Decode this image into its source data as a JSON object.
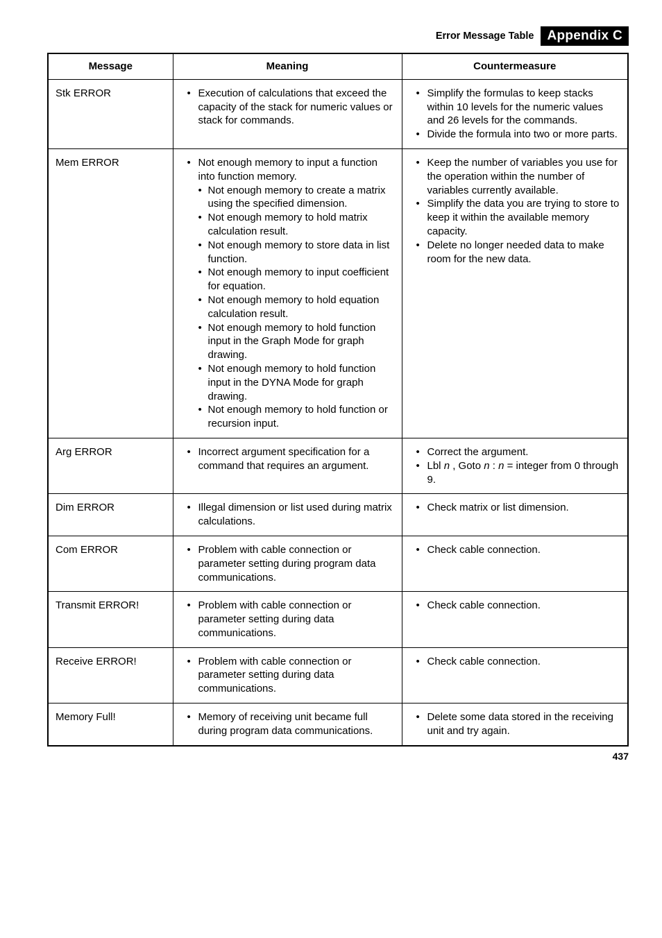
{
  "header": {
    "title": "Error Message Table",
    "badge": "Appendix C"
  },
  "table": {
    "columns": [
      "Message",
      "Meaning",
      "Countermeasure"
    ]
  },
  "rows": {
    "r0": {
      "message": "Stk ERROR",
      "meaning": [
        "Execution of calculations that exceed the capacity of the stack for numeric values or stack for commands."
      ],
      "counter": [
        "Simplify the formulas to keep stacks within 10 levels for the numeric values and 26 levels for the commands.",
        "Divide the formula into two or more parts."
      ]
    },
    "r1": {
      "message": "Mem ERROR",
      "meaning_top": "Not enough memory to input a function into function memory.",
      "meaning_sub": [
        "Not enough memory to create a matrix using the specified dimension.",
        "Not enough memory to hold matrix calculation result.",
        "Not enough memory to store data in list function.",
        "Not enough memory to input coefficient for equation.",
        "Not enough memory to hold equation calculation result.",
        "Not enough memory to hold function input in the Graph Mode for graph drawing.",
        "Not enough memory to hold function input in the DYNA Mode for graph drawing.",
        "Not enough memory to hold function or recursion input."
      ],
      "counter": [
        "Keep the number of variables you use for the operation within the number of variables currently available.",
        "Simplify the data you are trying to store to keep it within the available memory capacity.",
        "Delete no longer needed data to make room for the new data."
      ]
    },
    "r2": {
      "message": "Arg ERROR",
      "meaning": [
        "Incorrect argument specification for a command that requires an argument."
      ],
      "counter_a": "Correct the argument.",
      "counter_b_pre": "Lbl ",
      "counter_b_mid": " , Goto ",
      "counter_b_post": " = integer from 0 through 9."
    },
    "r3": {
      "message": "Dim ERROR",
      "meaning": [
        "Illegal dimension or list used during matrix calculations."
      ],
      "counter": [
        "Check matrix or list dimension."
      ]
    },
    "r4": {
      "message": "Com ERROR",
      "meaning": [
        "Problem with cable connection or parameter setting during program data communications."
      ],
      "counter": [
        "Check cable connection."
      ]
    },
    "r5": {
      "message": "Transmit ERROR!",
      "meaning": [
        "Problem with cable connection or parameter setting during data communications."
      ],
      "counter": [
        "Check cable connection."
      ]
    },
    "r6": {
      "message": "Receive ERROR!",
      "meaning": [
        "Problem with cable connection or parameter setting during data communications."
      ],
      "counter": [
        "Check cable connection."
      ]
    },
    "r7": {
      "message": "Memory Full!",
      "meaning": [
        "Memory of receiving unit became full during program data communications."
      ],
      "counter": [
        "Delete some data stored in the receiving unit and try again."
      ]
    }
  },
  "page_number": "437",
  "style": {
    "page_bg": "#ffffff",
    "text_color": "#000000",
    "border_color": "#000000",
    "badge_bg": "#000000",
    "badge_fg": "#ffffff",
    "body_fontsize": 15,
    "header_title_fontsize": 14.5,
    "badge_fontsize": 19
  }
}
